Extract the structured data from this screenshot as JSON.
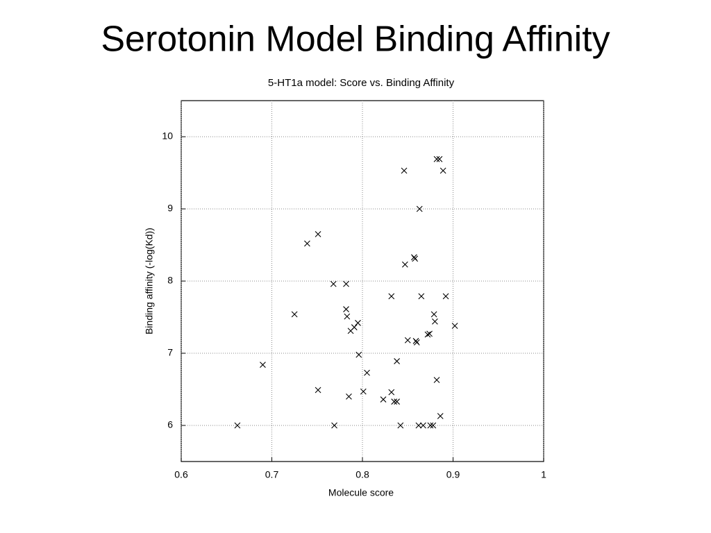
{
  "slide_title": "Serotonin Model Binding Affinity",
  "chart_data": {
    "type": "scatter",
    "title": "5-HT1a model: Score vs. Binding Affinity",
    "x_label": "Molecule score",
    "y_label": "Binding affinity (-log(Kd))",
    "xlim": [
      0.6,
      1.0
    ],
    "ylim": [
      5.5,
      10.5
    ],
    "xticks": [
      0.6,
      0.7,
      0.8,
      0.9,
      1
    ],
    "yticks": [
      6,
      7,
      8,
      9,
      10
    ],
    "grid": true,
    "color": "#000000",
    "x": [
      0.662,
      0.69,
      0.725,
      0.739,
      0.751,
      0.751,
      0.768,
      0.769,
      0.782,
      0.782,
      0.783,
      0.785,
      0.787,
      0.791,
      0.795,
      0.796,
      0.801,
      0.805,
      0.823,
      0.832,
      0.832,
      0.835,
      0.838,
      0.838,
      0.842,
      0.846,
      0.847,
      0.85,
      0.857,
      0.858,
      0.859,
      0.86,
      0.862,
      0.863,
      0.865,
      0.867,
      0.872,
      0.874,
      0.875,
      0.878,
      0.879,
      0.88,
      0.882,
      0.882,
      0.885,
      0.886,
      0.889,
      0.892,
      0.902
    ],
    "values": [
      6.0,
      6.84,
      7.54,
      8.52,
      8.65,
      6.49,
      7.96,
      6.0,
      7.96,
      7.61,
      7.51,
      6.4,
      7.31,
      7.36,
      7.42,
      6.98,
      6.47,
      6.73,
      6.36,
      7.79,
      6.46,
      6.33,
      6.33,
      6.89,
      6.0,
      9.53,
      8.23,
      7.18,
      8.33,
      8.31,
      7.17,
      7.15,
      6.0,
      9.0,
      7.79,
      6.0,
      7.26,
      7.27,
      6.0,
      6.0,
      7.54,
      7.44,
      6.63,
      9.69,
      9.69,
      6.13,
      9.53,
      7.79,
      7.38
    ]
  }
}
